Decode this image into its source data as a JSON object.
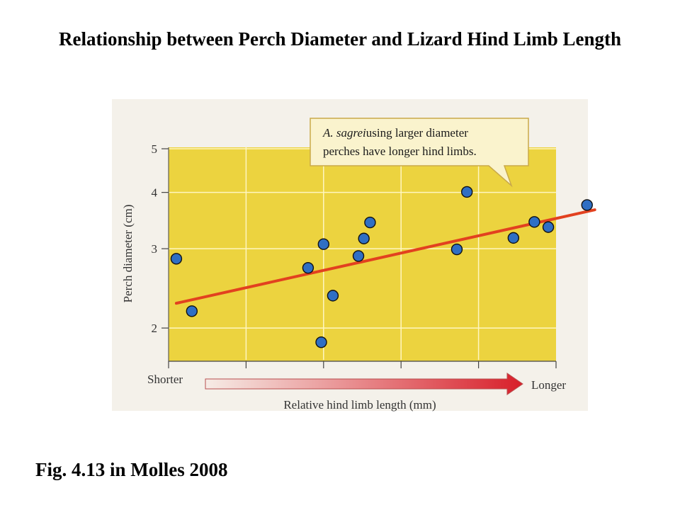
{
  "slide": {
    "title": "Relationship between Perch Diameter and Lizard Hind Limb Length",
    "caption": "Fig. 4.13 in Molles 2008"
  },
  "colors": {
    "plot_background": "#ecd33f",
    "figure_background": "#f4f1ea",
    "grid": "#fff6c0",
    "point_fill": "#2f6fc4",
    "trend_line": "#e2411f",
    "callout_fill": "#faf3cd",
    "arrow_start": "#f6ece6",
    "arrow_end": "#d81f2a"
  },
  "chart_data": {
    "type": "scatter",
    "title": "",
    "xlabel": "Relative hind limb length (mm)",
    "ylabel": "Perch diameter (cm)",
    "x_axis_start_label": "Shorter",
    "x_axis_end_label": "Longer",
    "y_scale": "log",
    "ylim": [
      1.7,
      5
    ],
    "xlim": [
      0,
      5
    ],
    "x_ticks": [
      0,
      1,
      2,
      3,
      4,
      5
    ],
    "y_ticks": [
      2,
      3,
      4,
      5
    ],
    "y_tick_labels": [
      "2",
      "3",
      "4",
      "5"
    ],
    "grid": true,
    "annotation": {
      "italic": "A. sagrei",
      "text": " using larger diameter perches have longer hind limbs."
    },
    "points": [
      {
        "x": 0.1,
        "y": 2.85
      },
      {
        "x": 0.3,
        "y": 2.18
      },
      {
        "x": 1.8,
        "y": 2.72
      },
      {
        "x": 1.97,
        "y": 1.86
      },
      {
        "x": 2.0,
        "y": 3.07
      },
      {
        "x": 2.12,
        "y": 2.36
      },
      {
        "x": 2.45,
        "y": 2.89
      },
      {
        "x": 2.52,
        "y": 3.16
      },
      {
        "x": 2.6,
        "y": 3.43
      },
      {
        "x": 3.72,
        "y": 2.99
      },
      {
        "x": 3.85,
        "y": 4.01
      },
      {
        "x": 4.45,
        "y": 3.17
      },
      {
        "x": 4.72,
        "y": 3.44
      },
      {
        "x": 4.9,
        "y": 3.35
      },
      {
        "x": 5.4,
        "y": 3.75
      }
    ],
    "trend_line": {
      "x": [
        0.1,
        5.5
      ],
      "y": [
        2.27,
        3.66
      ]
    }
  }
}
